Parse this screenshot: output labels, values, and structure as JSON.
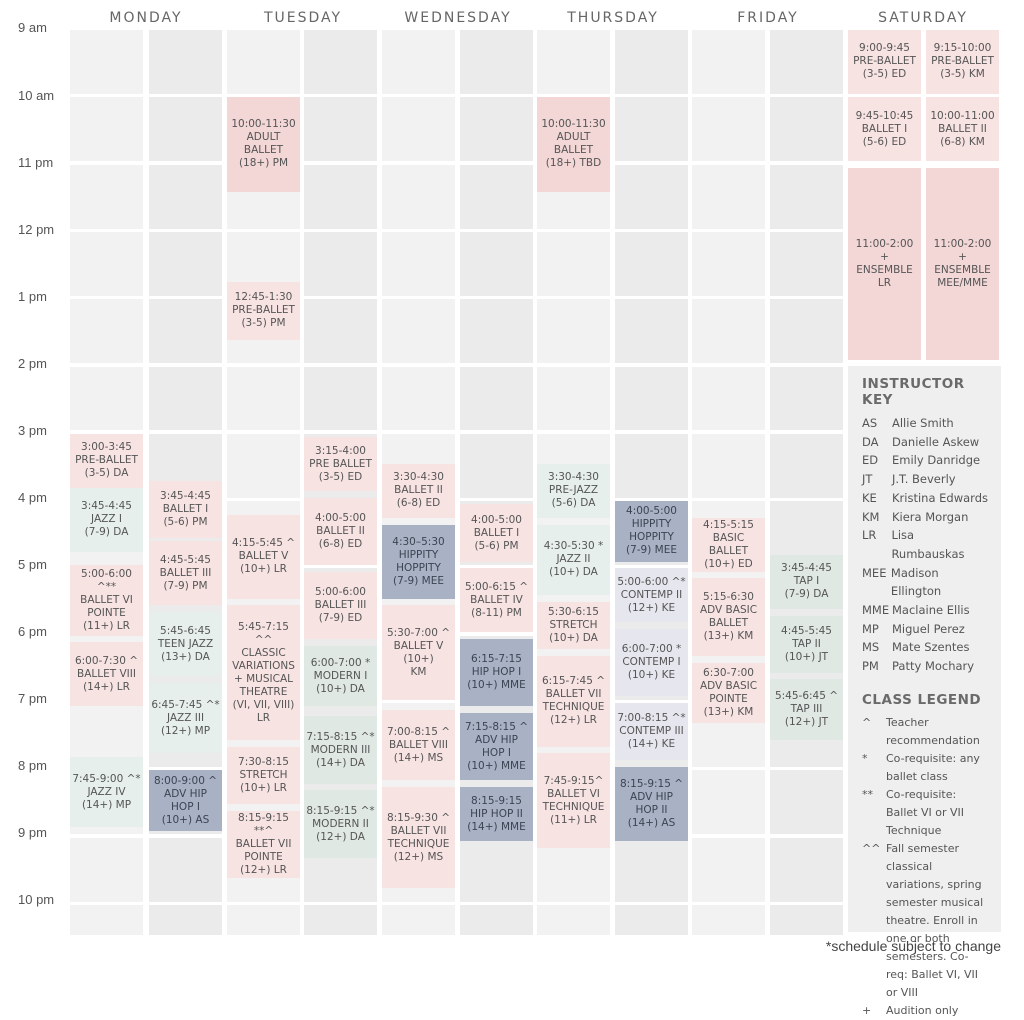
{
  "days": [
    "MONDAY",
    "TUESDAY",
    "WEDNESDAY",
    "THURSDAY",
    "FRIDAY",
    "SATURDAY"
  ],
  "times": [
    "9 am",
    "10 am",
    "11 pm",
    "12 pm",
    "1 pm",
    "2 pm",
    "3 pm",
    "4 pm",
    "5 pm",
    "6 pm",
    "7 pm",
    "8 pm",
    "9 pm",
    "10 pm"
  ],
  "classes": {
    "mon_a": [
      {
        "text": "3:00-3:45\nPRE-BALLET\n(3-5) DA",
        "color": "pink"
      },
      {
        "text": "3:45-4:45\nJAZZ I\n(7-9) DA",
        "color": "mint"
      },
      {
        "text": "5:00-6:00 ^**\nBALLET VI\nPOINTE\n(11+) LR",
        "color": "pink"
      },
      {
        "text": "6:00-7:30 ^\nBALLET VIII\n(14+) LR",
        "color": "pink"
      },
      {
        "text": "7:45-9:00 ^*\nJAZZ IV\n(14+) MP",
        "color": "mint"
      }
    ],
    "mon_b": [
      {
        "text": "3:45-4:45\nBALLET I\n(5-6) PM",
        "color": "pink"
      },
      {
        "text": "4:45-5:45\nBALLET III\n(7-9) PM",
        "color": "pink"
      },
      {
        "text": "5:45-6:45\nTEEN JAZZ\n(13+) DA",
        "color": "mint"
      },
      {
        "text": "6:45-7:45 ^*\nJAZZ III\n(12+) MP",
        "color": "mint"
      },
      {
        "text": "8:00-9:00 ^\nADV HIP\nHOP I\n(10+) AS",
        "color": "blue"
      }
    ],
    "tue_a": [
      {
        "text": "10:00-11:30\nADULT BALLET\n(18+) PM",
        "color": "rose"
      },
      {
        "text": "12:45-1:30\nPRE-BALLET\n(3-5) PM",
        "color": "pink"
      },
      {
        "text": "4:15-5:45 ^\nBALLET V\n(10+) LR",
        "color": "pink"
      },
      {
        "text": "5:45-7:15 ^^\nCLASSIC\nVARIATIONS\n+ MUSICAL\nTHEATRE\n(VI, VII, VIII)\nLR",
        "color": "pink"
      },
      {
        "text": "7:30-8:15\nSTRETCH\n(10+) LR",
        "color": "pink"
      },
      {
        "text": "8:15-9:15 **^\nBALLET VII\nPOINTE\n(12+) LR",
        "color": "pink"
      }
    ],
    "tue_b": [
      {
        "text": "3:15-4:00\nPRE BALLET\n(3-5) ED",
        "color": "pink"
      },
      {
        "text": "4:00-5:00\nBALLET II\n(6-8) ED",
        "color": "pink"
      },
      {
        "text": "5:00-6:00\nBALLET III\n(7-9) ED",
        "color": "pink"
      },
      {
        "text": "6:00-7:00 *\nMODERN I\n(10+) DA",
        "color": "green"
      },
      {
        "text": "7:15-8:15 ^*\nMODERN III\n(14+) DA",
        "color": "green"
      },
      {
        "text": "8:15-9:15 ^*\nMODERN II\n(12+) DA",
        "color": "green"
      }
    ],
    "wed_a": [
      {
        "text": "3:30-4:30\nBALLET II\n(6-8) ED",
        "color": "pink"
      },
      {
        "text": "4:30–5:30\nHIPPITY\nHOPPITY\n(7-9) MEE",
        "color": "blue"
      },
      {
        "text": "5:30-7:00 ^\nBALLET V\n(10+)\nKM",
        "color": "pink"
      },
      {
        "text": "7:00-8:15 ^\nBALLET VIII\n(14+) MS",
        "color": "pink"
      },
      {
        "text": "8:15-9:30 ^\nBALLET VII\nTECHNIQUE\n(12+) MS",
        "color": "pink"
      }
    ],
    "wed_b": [
      {
        "text": "4:00-5:00\nBALLET I\n(5-6) PM",
        "color": "pink"
      },
      {
        "text": "5:00-6:15 ^\nBALLET IV\n(8-11) PM",
        "color": "pink"
      },
      {
        "text": "6:15-7:15\nHIP HOP I\n(10+) MME",
        "color": "blue"
      },
      {
        "text": "7:15-8:15 ^\nADV HIP\nHOP I\n(10+) MME",
        "color": "blue"
      },
      {
        "text": "8:15-9:15\nHIP HOP II\n(14+) MME",
        "color": "blue"
      }
    ],
    "thu_a": [
      {
        "text": "10:00-11:30\nADULT BALLET\n(18+) TBD",
        "color": "rose"
      },
      {
        "text": "3:30-4:30\nPRE-JAZZ\n(5-6) DA",
        "color": "mint"
      },
      {
        "text": "4:30-5:30 *\nJAZZ II\n(10+) DA",
        "color": "mint"
      },
      {
        "text": "5:30-6:15\nSTRETCH\n(10+) DA",
        "color": "pink"
      },
      {
        "text": "6:15-7:45 ^\nBALLET VII\nTECHNIQUE\n(12+) LR",
        "color": "pink"
      },
      {
        "text": "7:45-9:15^\nBALLET VI\nTECHNIQUE\n(11+) LR",
        "color": "pink"
      }
    ],
    "thu_b": [
      {
        "text": "4:00-5:00\nHIPPITY\nHOPPITY\n(7-9) MEE",
        "color": "blue"
      },
      {
        "text": "5:00-6:00 ^*\nCONTEMP II\n(12+) KE",
        "color": "lav"
      },
      {
        "text": "6:00-7:00 *\nCONTEMP I\n(10+) KE",
        "color": "lav"
      },
      {
        "text": "7:00-8:15 ^*\nCONTEMP III\n(14+) KE",
        "color": "lav"
      },
      {
        "text": "8:15-9:15 ^\nADV HIP\nHOP II\n(14+) AS",
        "color": "blue"
      }
    ],
    "fri_a": [
      {
        "text": "4:15-5:15\nBASIC BALLET\n(10+) ED",
        "color": "pink"
      },
      {
        "text": "5:15-6:30\nADV BASIC\nBALLET\n(13+) KM",
        "color": "pink"
      },
      {
        "text": "6:30-7:00\nADV BASIC\nPOINTE\n(13+) KM",
        "color": "pink"
      }
    ],
    "fri_b": [
      {
        "text": "3:45-4:45\nTAP I\n(7-9) DA",
        "color": "green"
      },
      {
        "text": "4:45-5:45\nTAP II\n(10+) JT",
        "color": "green"
      },
      {
        "text": "5:45-6:45 ^\nTAP III\n(12+) JT",
        "color": "green"
      }
    ],
    "sat_a": [
      {
        "text": "9:00-9:45\nPRE-BALLET\n(3-5) ED",
        "color": "pink"
      },
      {
        "text": "9:45-10:45\nBALLET I\n(5-6) ED",
        "color": "pink"
      },
      {
        "text": "11:00-2:00 +\nENSEMBLE\nLR",
        "color": "rose"
      }
    ],
    "sat_b": [
      {
        "text": "9:15-10:00\nPRE-BALLET\n(3-5) KM",
        "color": "pink"
      },
      {
        "text": "10:00-11:00\nBALLET II\n(6-8) KM",
        "color": "pink"
      },
      {
        "text": "11:00-2:00 +\nENSEMBLE\nMEE/MME",
        "color": "rose"
      }
    ]
  },
  "instructor_key": {
    "title": "INSTRUCTOR KEY",
    "rows": [
      [
        "AS",
        "Allie Smith"
      ],
      [
        "DA",
        "Danielle Askew"
      ],
      [
        "ED",
        "Emily Danridge"
      ],
      [
        "JT",
        "J.T. Beverly"
      ],
      [
        "KE",
        "Kristina Edwards"
      ],
      [
        "KM",
        "Kiera Morgan"
      ],
      [
        "LR",
        "Lisa Rumbauskas"
      ],
      [
        "MEE",
        "Madison Ellington"
      ],
      [
        "MME",
        "Maclaine Ellis"
      ],
      [
        "MP",
        "Miguel Perez"
      ],
      [
        "MS",
        "Mate Szentes"
      ],
      [
        "PM",
        "Patty Mochary"
      ]
    ]
  },
  "class_legend": {
    "title": "CLASS LEGEND",
    "rows": [
      [
        "^",
        "Teacher recommendation"
      ],
      [
        "*",
        "Co-requisite: any ballet class"
      ],
      [
        "**",
        "Co-requisite: Ballet VI or VII Technique"
      ],
      [
        "^^",
        "Fall semester classical variations, spring semester musical theatre. Enroll in one or both semesters. Co-req: Ballet VI, VII or VIII"
      ],
      [
        "+",
        "Audition only"
      ]
    ]
  },
  "footnote": "*schedule subject to change",
  "colors": {
    "pink": "#f8e3e3",
    "rose": "#f3d6d6",
    "blue": "#a8b2c4",
    "green": "#dfe8e2",
    "mint": "#e6efec",
    "lav": "#e6e6ee"
  }
}
